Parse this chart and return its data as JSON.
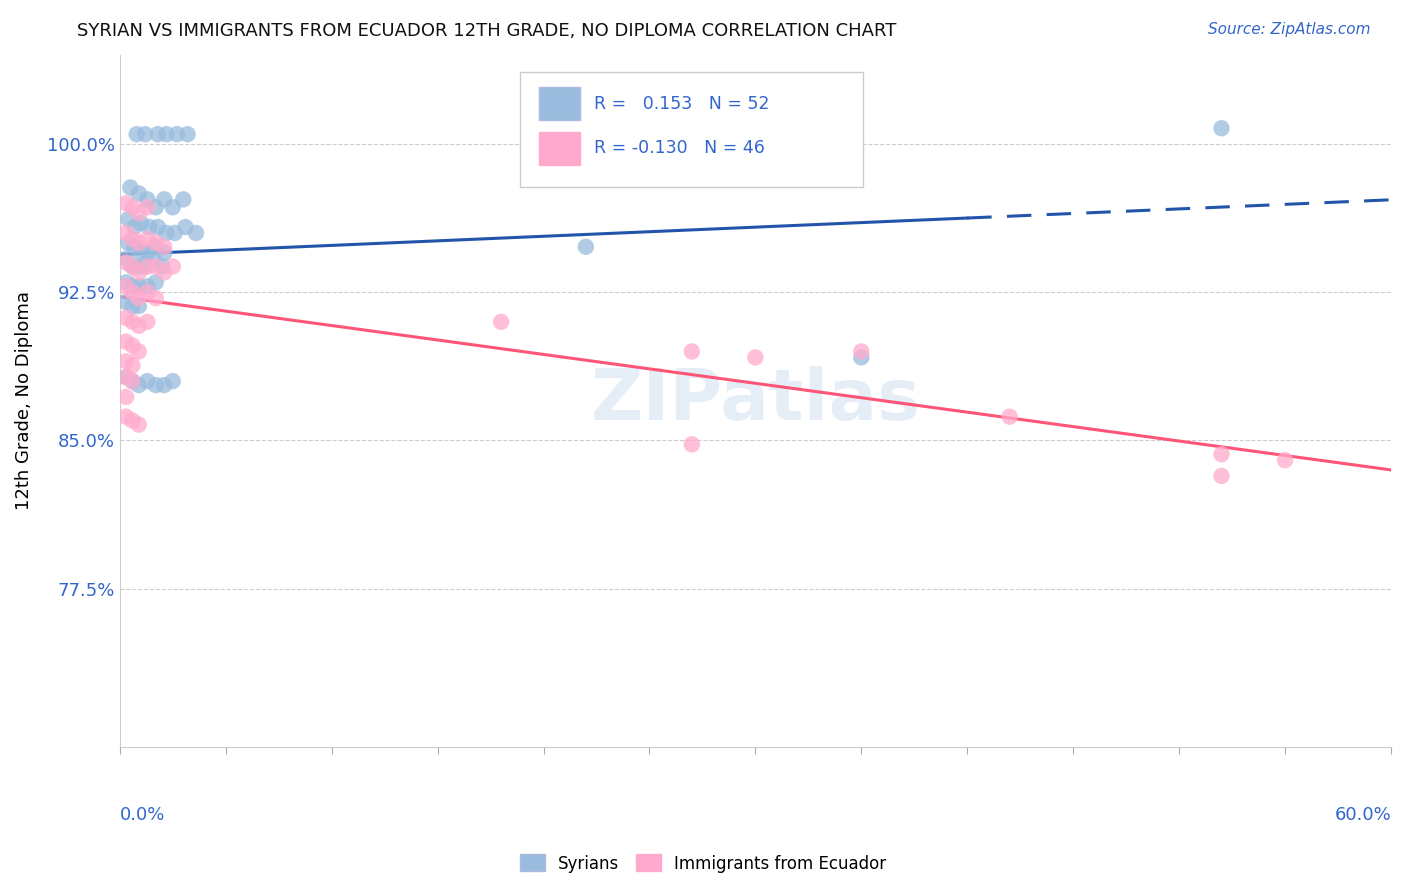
{
  "title": "SYRIAN VS IMMIGRANTS FROM ECUADOR 12TH GRADE, NO DIPLOMA CORRELATION CHART",
  "source": "Source: ZipAtlas.com",
  "ylabel": "12th Grade, No Diploma",
  "yticks": [
    0.775,
    0.85,
    0.925,
    1.0
  ],
  "ytick_labels": [
    "77.5%",
    "85.0%",
    "92.5%",
    "100.0%"
  ],
  "xmin": 0.0,
  "xmax": 0.6,
  "ymin": 0.695,
  "ymax": 1.045,
  "blue_color": "#99BBDD",
  "pink_color": "#FFAACC",
  "blue_line_color": "#2255AA",
  "pink_line_color": "#FF5577",
  "syrians_label": "Syrians",
  "ecuador_label": "Immigrants from Ecuador",
  "blue_x": [
    0.008,
    0.012,
    0.018,
    0.022,
    0.027,
    0.032,
    0.005,
    0.009,
    0.013,
    0.017,
    0.021,
    0.025,
    0.03,
    0.004,
    0.007,
    0.01,
    0.014,
    0.018,
    0.022,
    0.026,
    0.031,
    0.036,
    0.004,
    0.007,
    0.01,
    0.013,
    0.017,
    0.021,
    0.003,
    0.006,
    0.009,
    0.012,
    0.016,
    0.02,
    0.003,
    0.006,
    0.009,
    0.013,
    0.017,
    0.003,
    0.006,
    0.009,
    0.22,
    0.35,
    0.52,
    0.003,
    0.006,
    0.009,
    0.013,
    0.017,
    0.021,
    0.025
  ],
  "blue_y": [
    1.005,
    1.005,
    1.005,
    1.005,
    1.005,
    1.005,
    0.978,
    0.975,
    0.972,
    0.968,
    0.972,
    0.968,
    0.972,
    0.962,
    0.958,
    0.96,
    0.958,
    0.958,
    0.955,
    0.955,
    0.958,
    0.955,
    0.95,
    0.948,
    0.945,
    0.945,
    0.948,
    0.945,
    0.942,
    0.938,
    0.938,
    0.938,
    0.942,
    0.938,
    0.93,
    0.928,
    0.928,
    0.928,
    0.93,
    0.92,
    0.918,
    0.918,
    0.948,
    0.892,
    1.008,
    0.882,
    0.88,
    0.878,
    0.88,
    0.878,
    0.878,
    0.88
  ],
  "pink_x": [
    0.003,
    0.006,
    0.009,
    0.013,
    0.003,
    0.006,
    0.009,
    0.013,
    0.017,
    0.021,
    0.003,
    0.006,
    0.009,
    0.013,
    0.017,
    0.021,
    0.025,
    0.003,
    0.006,
    0.009,
    0.013,
    0.017,
    0.003,
    0.006,
    0.009,
    0.013,
    0.003,
    0.006,
    0.009,
    0.003,
    0.006,
    0.003,
    0.006,
    0.003,
    0.18,
    0.27,
    0.3,
    0.35,
    0.52,
    0.42,
    0.003,
    0.006,
    0.009,
    0.27,
    0.52,
    0.55
  ],
  "pink_y": [
    0.97,
    0.968,
    0.965,
    0.968,
    0.955,
    0.952,
    0.95,
    0.952,
    0.95,
    0.948,
    0.94,
    0.938,
    0.935,
    0.938,
    0.938,
    0.935,
    0.938,
    0.928,
    0.925,
    0.922,
    0.925,
    0.922,
    0.912,
    0.91,
    0.908,
    0.91,
    0.9,
    0.898,
    0.895,
    0.89,
    0.888,
    0.882,
    0.88,
    0.872,
    0.91,
    0.895,
    0.892,
    0.895,
    0.843,
    0.862,
    0.862,
    0.86,
    0.858,
    0.848,
    0.832,
    0.84
  ]
}
